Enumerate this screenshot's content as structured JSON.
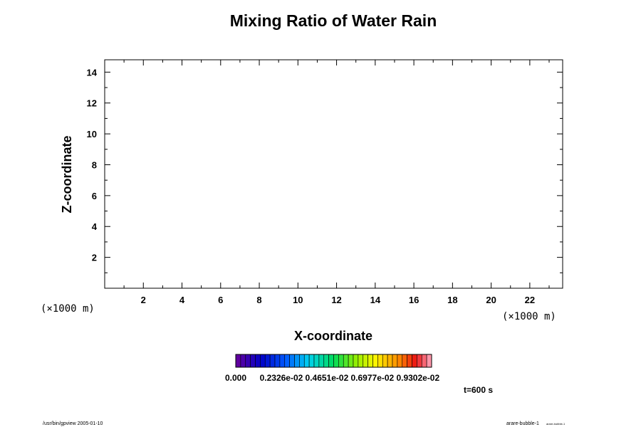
{
  "chart_data": {
    "type": "heatmap",
    "title": "Mixing Ratio of Water Rain",
    "xlabel": "X-coordinate",
    "ylabel": "Z-coordinate",
    "x_scale_label": "(×1000 m)",
    "y_scale_label": "(×1000 m)",
    "xlim": [
      0,
      23.7
    ],
    "ylim": [
      0,
      14.8
    ],
    "x_major_ticks": [
      2,
      4,
      6,
      8,
      10,
      12,
      14,
      16,
      18,
      20,
      22
    ],
    "y_major_ticks": [
      2,
      4,
      6,
      8,
      10,
      12,
      14
    ],
    "x_minor_step": 1,
    "y_minor_step": 1,
    "values": [],
    "colorbar": {
      "min": 0,
      "max": 0.01,
      "levels": 40,
      "colormap": "rainbow",
      "tick_labels": [
        "0.000",
        "0.2326e-02",
        "0.4651e-02",
        "0.6977e-02",
        "0.9302e-02"
      ],
      "tick_values": [
        0,
        0.002326,
        0.004651,
        0.006977,
        0.009302
      ]
    },
    "time_label": "t=600 s"
  },
  "footer": {
    "left": "/usr/bin/gpview 2005-01-10",
    "right_main": "arare-bubble-1",
    "right_sub": "arare-bubble-1"
  }
}
